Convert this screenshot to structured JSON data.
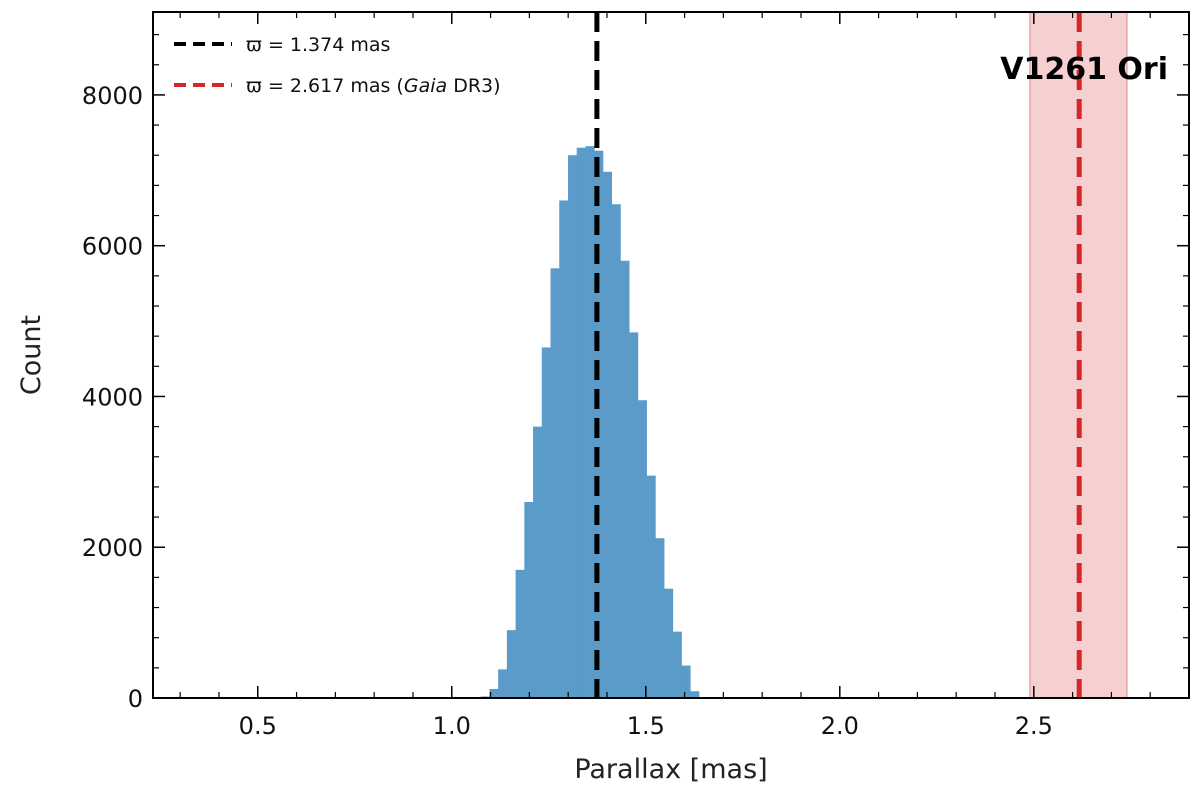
{
  "chart_data": {
    "type": "bar",
    "xlabel": "Parallax [mas]",
    "ylabel": "Count",
    "xlim": [
      0.23,
      2.9
    ],
    "ylim": [
      0,
      9100
    ],
    "xticks": [
      "0.5",
      "1.0",
      "1.5",
      "2.0",
      "2.5"
    ],
    "yticks": [
      "0",
      "2000",
      "4000",
      "6000",
      "8000"
    ],
    "grid": false,
    "legend_position": "top-left",
    "histogram": {
      "color": "#5b9bc9",
      "bin_width": 0.0225,
      "bin_edges_start": 1.0745,
      "counts": [
        20,
        120,
        380,
        900,
        1700,
        2600,
        3600,
        4650,
        5700,
        6600,
        7200,
        7300,
        7320,
        7260,
        6980,
        6550,
        5800,
        4850,
        3950,
        2950,
        2120,
        1450,
        880,
        430,
        90
      ]
    },
    "series": [
      {
        "name": "ϖ = 1.374 mas",
        "value": 1.374,
        "color": "#000000",
        "style": "dashed"
      },
      {
        "name": "ϖ = 2.617 mas (Gaia DR3)",
        "value": 2.617,
        "color": "#d62728",
        "style": "dashed"
      }
    ],
    "band": {
      "from": 2.49,
      "to": 2.74,
      "color": "#f6cfd1",
      "edge_color": "#e8a3a7"
    },
    "annotation": "V1261 Ori"
  },
  "legend": {
    "entry1_prefix": "ϖ = 1.374 mas",
    "entry2_prefix": "ϖ = 2.617 mas (",
    "entry2_italic": "Gaia",
    "entry2_suffix": " DR3)"
  }
}
